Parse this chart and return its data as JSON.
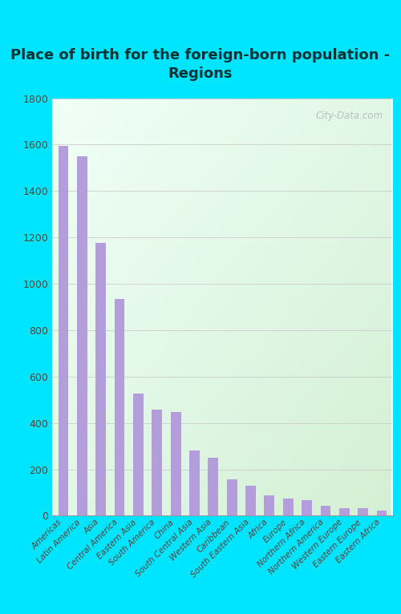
{
  "title": "Place of birth for the foreign-born population -\nRegions",
  "categories": [
    "Americas",
    "Latin America",
    "Asia",
    "Central America",
    "Eastern Asia",
    "South America",
    "China",
    "South Central Asia",
    "Western Asia",
    "Caribbean",
    "South Eastern Asia",
    "Africa",
    "Europe",
    "Northern Africa",
    "Northern America",
    "Western Europe",
    "Eastern Europe",
    "Eastern Africa"
  ],
  "values": [
    1595,
    1549,
    1178,
    935,
    527,
    457,
    447,
    280,
    252,
    158,
    128,
    88,
    73,
    68,
    42,
    33,
    33,
    23
  ],
  "bar_color": "#b39ddb",
  "bg_outer": "#00e5ff",
  "bg_inner_tl": "#f0fff8",
  "bg_inner_br": "#d4f0d4",
  "ylim": [
    0,
    1800
  ],
  "yticks": [
    0,
    200,
    400,
    600,
    800,
    1000,
    1200,
    1400,
    1600,
    1800
  ],
  "title_fontsize": 13,
  "title_color": "#003333",
  "tick_color": "#5d4037",
  "ytick_color": "#5d4037",
  "watermark": "City-Data.com",
  "grid_color": "#cccccc"
}
